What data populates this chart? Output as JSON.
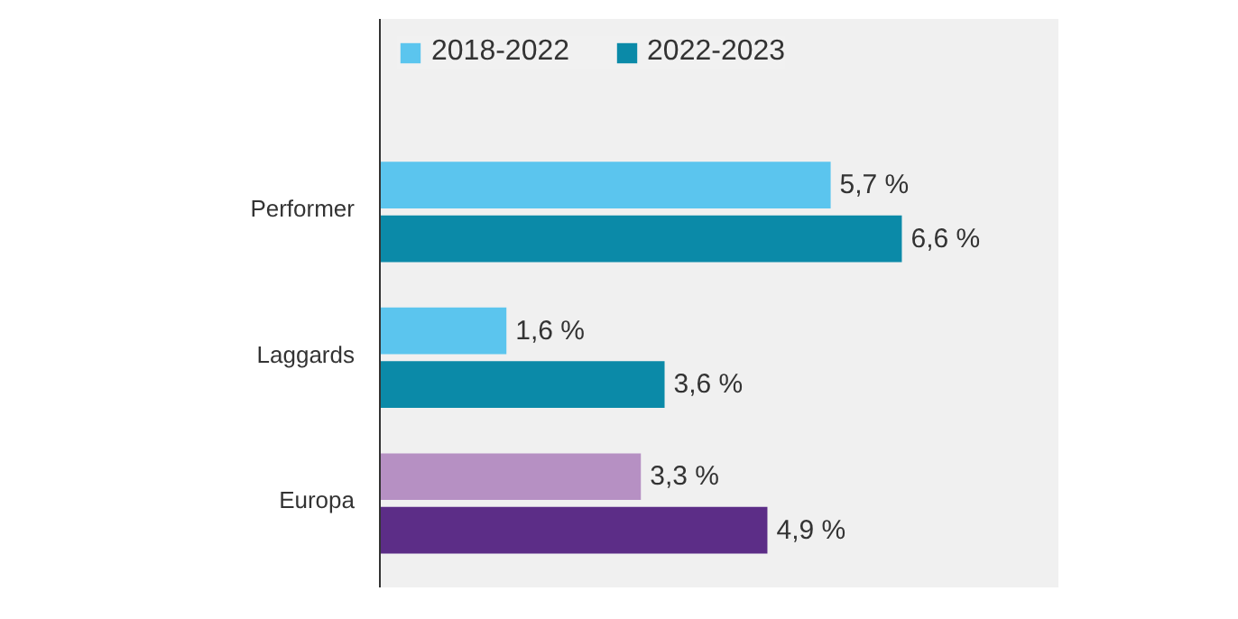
{
  "chart_data": {
    "type": "bar",
    "orientation": "horizontal",
    "categories": [
      "Performer",
      "Laggards",
      "Europa"
    ],
    "series": [
      {
        "name": "2018-2022",
        "colors": [
          "#5bc5ee",
          "#5bc5ee",
          "#b690c3"
        ],
        "values": [
          5.7,
          1.6,
          3.3
        ],
        "value_labels": [
          "5,7 %",
          "1,6 %",
          "3,3 %"
        ]
      },
      {
        "name": "2022-2023",
        "colors": [
          "#0b8aa8",
          "#0b8aa8",
          "#5c2d87"
        ],
        "values": [
          6.6,
          3.6,
          4.9
        ],
        "value_labels": [
          "6,6 %",
          "3,6 %",
          "4,9 %"
        ]
      }
    ],
    "legend": "top left"
  }
}
